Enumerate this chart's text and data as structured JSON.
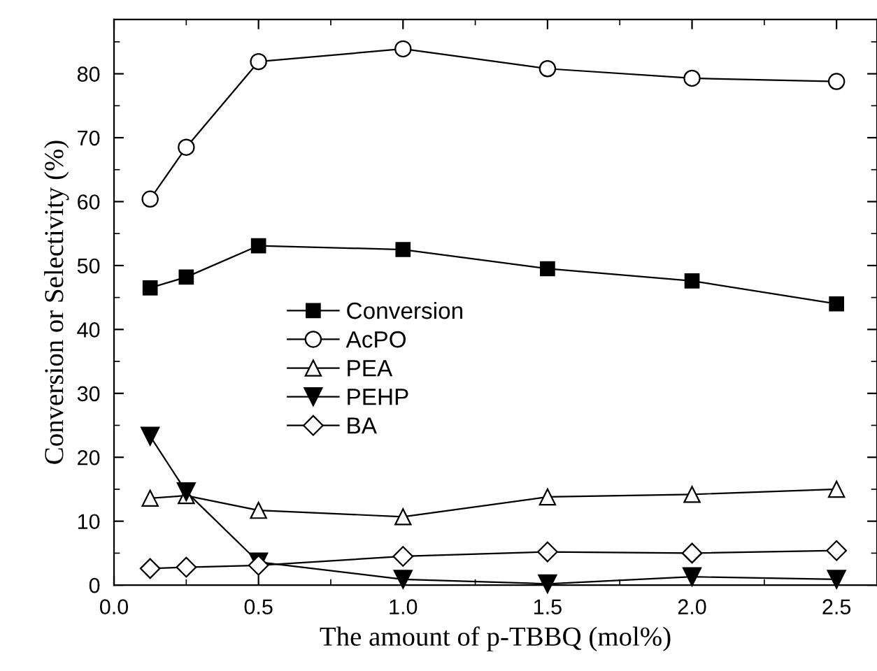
{
  "chart_data": {
    "type": "line",
    "xlabel": "The amount of p-TBBQ (mol%)",
    "ylabel": "Conversion or Selectivity (%)",
    "x": [
      0.125,
      0.25,
      0.5,
      1.0,
      1.5,
      2.0,
      2.5
    ],
    "xlim": [
      0,
      2.64
    ],
    "xticks": [
      {
        "value": 0,
        "label": "0.0"
      },
      0.5,
      {
        "value": 1,
        "label": "1.0"
      },
      1.5,
      {
        "value": 2,
        "label": "2.0"
      },
      2.5
    ],
    "ylim": [
      0,
      88.5
    ],
    "yticks": [
      0,
      10,
      20,
      30,
      40,
      50,
      60,
      70,
      80
    ],
    "grid": false,
    "legend": "center left",
    "line_style": "solid",
    "series": [
      {
        "name": "Conversion",
        "color": "#000000",
        "marker": "square",
        "values": [
          46.5,
          48.2,
          53.1,
          52.5,
          49.5,
          47.6,
          44.0
        ]
      },
      {
        "name": "AcPO",
        "color": "#000000",
        "marker": "circle",
        "values": [
          60.4,
          68.5,
          81.9,
          83.9,
          80.8,
          79.3,
          78.8
        ]
      },
      {
        "name": "PEA",
        "color": "#000000",
        "marker": "triangle",
        "values": [
          13.6,
          14.0,
          11.7,
          10.7,
          13.8,
          14.2,
          15.0
        ]
      },
      {
        "name": "PEHP",
        "color": "#000000",
        "marker": "triangle-down",
        "values": [
          23.3,
          14.6,
          3.6,
          0.9,
          0.2,
          1.3,
          0.9
        ]
      },
      {
        "name": "BA",
        "color": "#000000",
        "marker": "diamond",
        "values": [
          2.6,
          2.8,
          3.1,
          4.5,
          5.2,
          5.0,
          5.4
        ]
      }
    ]
  }
}
